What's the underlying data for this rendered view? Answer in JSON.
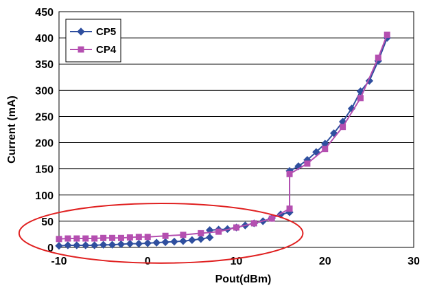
{
  "chart_data": {
    "type": "line",
    "title": "",
    "xlabel": "Pout(dBm)",
    "ylabel": "Current (mA)",
    "xlim": [
      -10,
      30
    ],
    "ylim": [
      0,
      450
    ],
    "xticks": [
      "-10",
      "0",
      "10",
      "20",
      "30"
    ],
    "yticks": [
      "0",
      "50",
      "100",
      "150",
      "200",
      "250",
      "300",
      "350",
      "400",
      "450"
    ],
    "grid": "horizontal",
    "legend_position": "top-left",
    "series": [
      {
        "name": "CP5",
        "color": "#2f4f9f",
        "marker": "diamond",
        "x": [
          -10,
          -9,
          -8,
          -7,
          -6,
          -5,
          -4,
          -3,
          -2,
          -1,
          0,
          1,
          2,
          3,
          4,
          5,
          6,
          7,
          7,
          8,
          9,
          10,
          11,
          12,
          13,
          14,
          15,
          16,
          16,
          17,
          18,
          19,
          20,
          21,
          22,
          23,
          24,
          25,
          26,
          27
        ],
        "y": [
          3,
          4,
          4,
          4,
          4,
          5,
          5,
          6,
          7,
          7,
          8,
          9,
          10,
          11,
          12,
          14,
          16,
          19,
          33,
          34,
          35,
          38,
          42,
          46,
          50,
          56,
          63,
          67,
          146,
          155,
          167,
          182,
          198,
          218,
          240,
          265,
          298,
          318,
          356,
          400
        ]
      },
      {
        "name": "CP4",
        "color": "#b44fb0",
        "marker": "square",
        "x": [
          -10,
          -9,
          -8,
          -7,
          -6,
          -5,
          -4,
          -3,
          -2,
          -1,
          0,
          2,
          4,
          6,
          8,
          10,
          12,
          14,
          16,
          16,
          18,
          20,
          22,
          24,
          26,
          27
        ],
        "y": [
          16,
          17,
          17,
          17,
          17,
          18,
          18,
          18,
          19,
          20,
          20,
          22,
          24,
          27,
          30,
          38,
          46,
          55,
          74,
          140,
          160,
          188,
          230,
          285,
          362,
          406
        ]
      }
    ],
    "annotations": [
      {
        "type": "ellipse",
        "color": "#e02020",
        "cx": 1.5,
        "cy": 27,
        "rx": 16,
        "ry": 57
      }
    ]
  }
}
